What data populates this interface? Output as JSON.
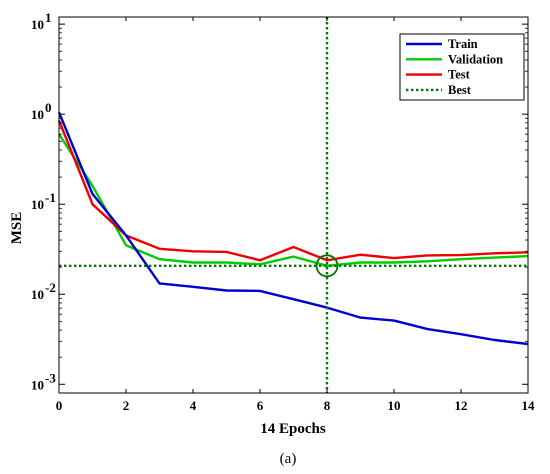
{
  "chart_data": {
    "type": "line",
    "title": "",
    "xlabel": "14 Epochs",
    "ylabel": "MSE",
    "caption": "(a)",
    "yscale": "log",
    "xlim": [
      0,
      14
    ],
    "ylim": [
      0.0008,
      12
    ],
    "x_ticks": [
      0,
      2,
      4,
      6,
      8,
      10,
      12,
      14
    ],
    "y_ticks": [
      {
        "value": 10,
        "base": "10",
        "exp": "1"
      },
      {
        "value": 1,
        "base": "10",
        "exp": "0"
      },
      {
        "value": 0.1,
        "base": "10",
        "exp": "-1"
      },
      {
        "value": 0.01,
        "base": "10",
        "exp": "-2"
      },
      {
        "value": 0.001,
        "base": "10",
        "exp": "-3"
      }
    ],
    "grid": false,
    "legend_position": "top-right",
    "x": [
      0,
      1,
      2,
      3,
      4,
      5,
      6,
      7,
      8,
      9,
      10,
      11,
      12,
      13,
      14
    ],
    "series": [
      {
        "name": "Train",
        "color": "#0000cc",
        "style": "solid",
        "values": [
          1.05,
          0.13,
          0.045,
          0.0132,
          0.0121,
          0.011,
          0.0109,
          0.0088,
          0.0071,
          0.0055,
          0.0051,
          0.0041,
          0.0036,
          0.0031,
          0.0028
        ]
      },
      {
        "name": "Validation",
        "color": "#00cc00",
        "style": "solid",
        "values": [
          0.6,
          0.16,
          0.035,
          0.0245,
          0.0225,
          0.0225,
          0.0215,
          0.0262,
          0.0207,
          0.0225,
          0.0225,
          0.0232,
          0.0245,
          0.0255,
          0.0265
        ]
      },
      {
        "name": "Test",
        "color": "#ee0000",
        "style": "solid",
        "values": [
          0.85,
          0.1,
          0.045,
          0.032,
          0.03,
          0.0295,
          0.0238,
          0.0335,
          0.0238,
          0.0275,
          0.0252,
          0.027,
          0.0272,
          0.0285,
          0.0292
        ]
      },
      {
        "name": "Best",
        "color": "#007700",
        "style": "dotted",
        "best_epoch": 8,
        "best_value": 0.0207
      }
    ]
  }
}
